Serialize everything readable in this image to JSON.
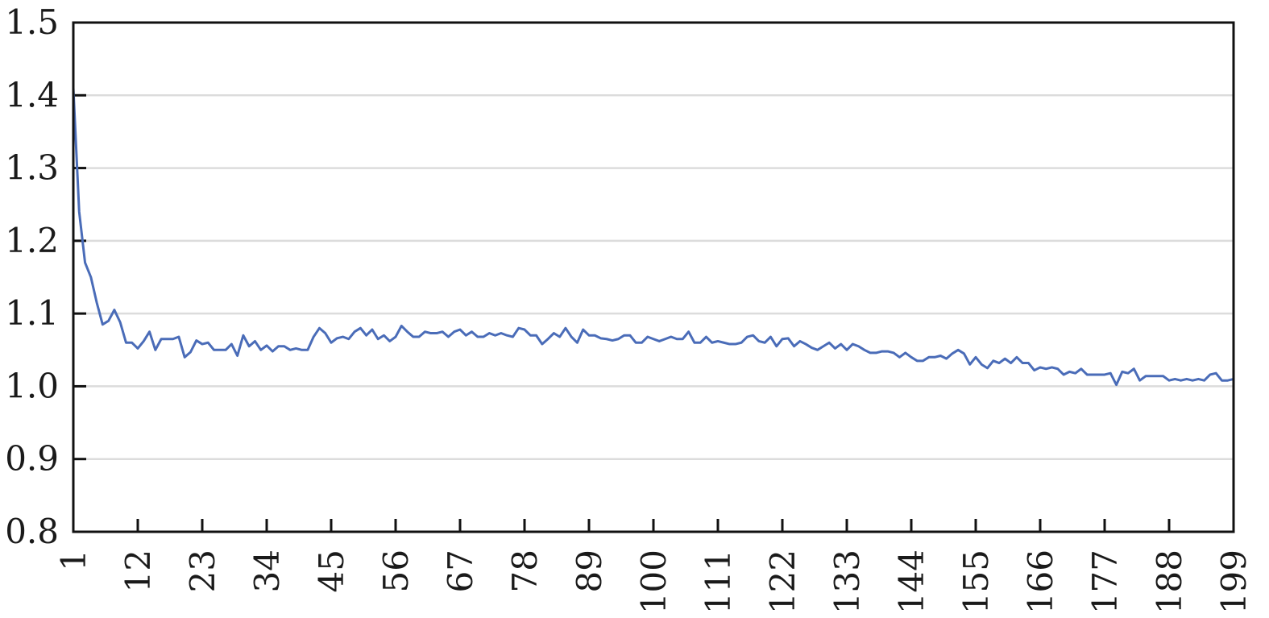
{
  "chart_data": {
    "type": "line",
    "title": "",
    "xlabel": "",
    "ylabel": "",
    "xlim": [
      1,
      199
    ],
    "ylim": [
      0.8,
      1.5
    ],
    "grid": true,
    "legend": "none",
    "line_color": "#4a6cb8",
    "y_ticks": [
      "0.8",
      "0.9",
      "1.0",
      "1.1",
      "1.2",
      "1.3",
      "1.4",
      "1.5"
    ],
    "x_ticks": [
      "1",
      "12",
      "23",
      "34",
      "45",
      "56",
      "67",
      "78",
      "89",
      "100",
      "111",
      "122",
      "133",
      "144",
      "155",
      "166",
      "177",
      "188",
      "199"
    ],
    "series": [
      {
        "x": [
          1,
          2,
          3,
          4,
          5,
          6,
          7,
          8,
          9,
          10,
          11,
          12,
          13,
          14,
          15,
          16,
          17,
          18,
          19,
          20,
          21,
          22,
          23,
          24,
          25,
          26,
          27,
          28,
          29,
          30,
          31,
          32,
          33,
          34,
          35,
          36,
          37,
          38,
          39,
          40,
          41,
          42,
          43,
          44,
          45,
          46,
          47,
          48,
          49,
          50,
          51,
          52,
          53,
          54,
          55,
          56,
          57,
          58,
          59,
          60,
          61,
          62,
          63,
          64,
          65,
          66,
          67,
          68,
          69,
          70,
          71,
          72,
          73,
          74,
          75,
          76,
          77,
          78,
          79,
          80,
          81,
          82,
          83,
          84,
          85,
          86,
          87,
          88,
          89,
          90,
          91,
          92,
          93,
          94,
          95,
          96,
          97,
          98,
          99,
          100,
          101,
          102,
          103,
          104,
          105,
          106,
          107,
          108,
          109,
          110,
          111,
          112,
          113,
          114,
          115,
          116,
          117,
          118,
          119,
          120,
          121,
          122,
          123,
          124,
          125,
          126,
          127,
          128,
          129,
          130,
          131,
          132,
          133,
          134,
          135,
          136,
          137,
          138,
          139,
          140,
          141,
          142,
          143,
          144,
          145,
          146,
          147,
          148,
          149,
          150,
          151,
          152,
          153,
          154,
          155,
          156,
          157,
          158,
          159,
          160,
          161,
          162,
          163,
          164,
          165,
          166,
          167,
          168,
          169,
          170,
          171,
          172,
          173,
          174,
          175,
          176,
          177,
          178,
          179,
          180,
          181,
          182,
          183,
          184,
          185,
          186,
          187,
          188,
          189,
          190,
          191,
          192,
          193,
          194,
          195,
          196,
          197,
          198,
          199
        ],
        "y": [
          1.41,
          1.24,
          1.17,
          1.15,
          1.115,
          1.085,
          1.09,
          1.105,
          1.088,
          1.06,
          1.06,
          1.052,
          1.062,
          1.075,
          1.05,
          1.065,
          1.065,
          1.065,
          1.068,
          1.04,
          1.047,
          1.063,
          1.058,
          1.06,
          1.05,
          1.05,
          1.05,
          1.058,
          1.042,
          1.07,
          1.055,
          1.062,
          1.05,
          1.056,
          1.048,
          1.055,
          1.055,
          1.05,
          1.052,
          1.05,
          1.05,
          1.068,
          1.08,
          1.073,
          1.06,
          1.066,
          1.068,
          1.065,
          1.075,
          1.08,
          1.07,
          1.078,
          1.065,
          1.07,
          1.062,
          1.068,
          1.083,
          1.075,
          1.068,
          1.068,
          1.075,
          1.073,
          1.073,
          1.075,
          1.068,
          1.075,
          1.078,
          1.07,
          1.075,
          1.068,
          1.068,
          1.073,
          1.07,
          1.073,
          1.07,
          1.068,
          1.08,
          1.078,
          1.07,
          1.07,
          1.058,
          1.065,
          1.073,
          1.068,
          1.08,
          1.068,
          1.06,
          1.078,
          1.07,
          1.07,
          1.066,
          1.065,
          1.063,
          1.065,
          1.07,
          1.07,
          1.06,
          1.06,
          1.068,
          1.065,
          1.062,
          1.065,
          1.068,
          1.065,
          1.065,
          1.075,
          1.06,
          1.06,
          1.068,
          1.06,
          1.062,
          1.06,
          1.058,
          1.058,
          1.06,
          1.068,
          1.07,
          1.062,
          1.06,
          1.068,
          1.055,
          1.065,
          1.066,
          1.055,
          1.062,
          1.058,
          1.053,
          1.05,
          1.055,
          1.06,
          1.052,
          1.058,
          1.05,
          1.058,
          1.055,
          1.05,
          1.046,
          1.046,
          1.048,
          1.048,
          1.046,
          1.04,
          1.046,
          1.04,
          1.035,
          1.035,
          1.04,
          1.04,
          1.042,
          1.038,
          1.045,
          1.05,
          1.045,
          1.03,
          1.04,
          1.03,
          1.025,
          1.035,
          1.032,
          1.038,
          1.032,
          1.04,
          1.032,
          1.032,
          1.022,
          1.026,
          1.024,
          1.026,
          1.024,
          1.016,
          1.02,
          1.018,
          1.024,
          1.016,
          1.016,
          1.016,
          1.016,
          1.018,
          1.002,
          1.02,
          1.018,
          1.024,
          1.008,
          1.014,
          1.014,
          1.014,
          1.014,
          1.008,
          1.01,
          1.008,
          1.01,
          1.008,
          1.01,
          1.008,
          1.016,
          1.018,
          1.008,
          1.008,
          1.01
        ]
      }
    ]
  }
}
